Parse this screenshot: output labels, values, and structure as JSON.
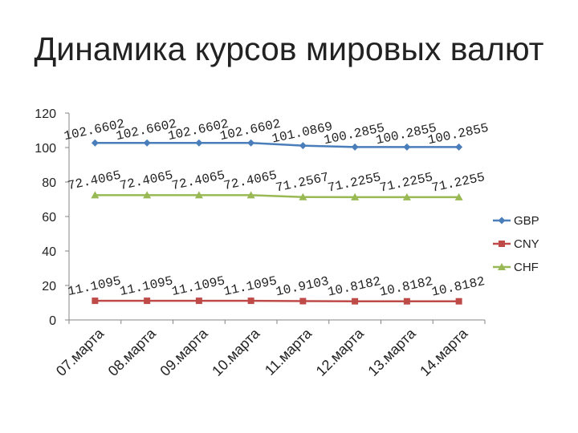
{
  "slide": {
    "title": "Динамика курсов мировых валют"
  },
  "chart_data": {
    "type": "line",
    "title": "",
    "xlabel": "",
    "ylabel": "",
    "categories": [
      "07.марта",
      "08.марта",
      "09.марта",
      "10.марта",
      "11.марта",
      "12.марта",
      "13.марта",
      "14.марта"
    ],
    "y_ticks": [
      "0",
      "20",
      "40",
      "60",
      "80",
      "100",
      "120"
    ],
    "ylim": [
      0,
      120
    ],
    "grid": false,
    "legend": "right",
    "series": [
      {
        "name": "GBP",
        "color": "#4a7ebb",
        "marker": "diamond",
        "values": [
          102.6602,
          102.6602,
          102.6602,
          102.6602,
          101.0869,
          100.2855,
          100.2855,
          100.2855
        ],
        "labels": [
          "102.6602",
          "102.6602",
          "102.6602",
          "102.6602",
          "101.0869",
          "100.2855",
          "100.2855",
          "100.2855"
        ]
      },
      {
        "name": "CNY",
        "color": "#be4b48",
        "marker": "square",
        "values": [
          11.1095,
          11.1095,
          11.1095,
          11.1095,
          10.9103,
          10.8182,
          10.8182,
          10.8182
        ],
        "labels": [
          "11.1095",
          "11.1095",
          "11.1095",
          "11.1095",
          "10.9103",
          "10.8182",
          "10.8182",
          "10.8182"
        ]
      },
      {
        "name": "CHF",
        "color": "#98b954",
        "marker": "triangle",
        "values": [
          72.4065,
          72.4065,
          72.4065,
          72.4065,
          71.2567,
          71.2255,
          71.2255,
          71.2255
        ],
        "labels": [
          "72.4065",
          "72.4065",
          "72.4065",
          "72.4065",
          "71.2567",
          "71.2255",
          "71.2255",
          "71.2255"
        ]
      }
    ]
  }
}
